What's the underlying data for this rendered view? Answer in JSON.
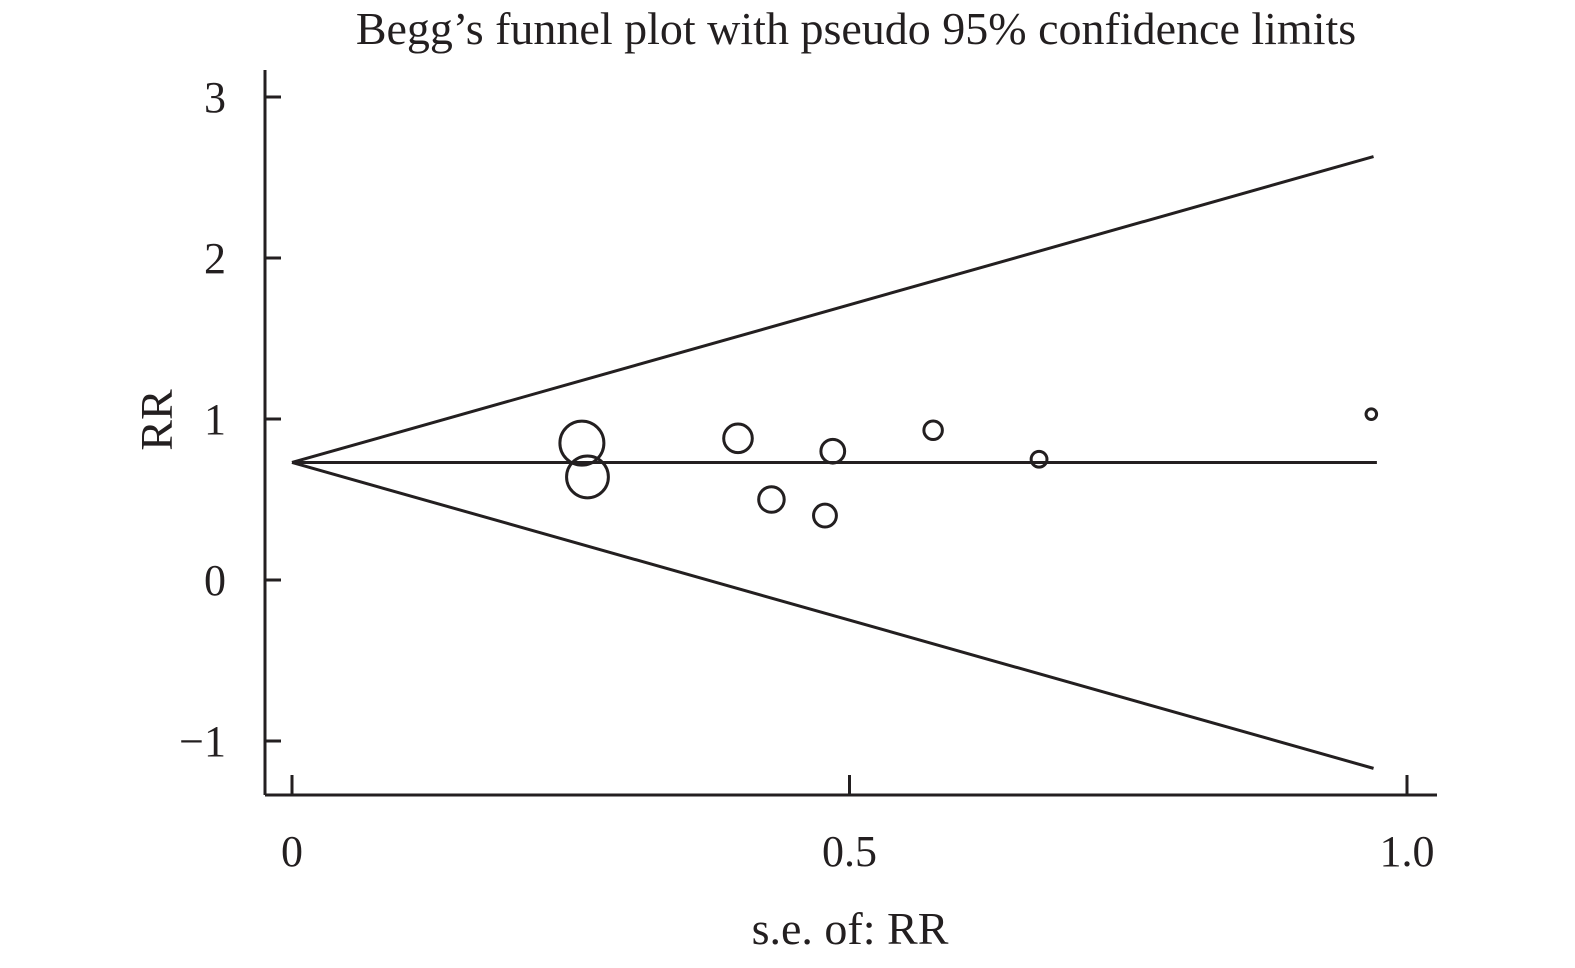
{
  "chart_data": {
    "type": "scatter",
    "title": "Begg’s funnel plot with pseudo 95% confidence limits",
    "xlabel": "s.e. of: RR",
    "ylabel": "RR",
    "xlim": [
      -0.025,
      1.025
    ],
    "ylim": [
      -1.33,
      3.17
    ],
    "x_ticks": [
      {
        "value": 0,
        "label": "0"
      },
      {
        "value": 0.5,
        "label": "0.5"
      },
      {
        "value": 1.0,
        "label": "1.0"
      }
    ],
    "y_ticks": [
      {
        "value": -1,
        "label": "−1"
      },
      {
        "value": 0,
        "label": "0"
      },
      {
        "value": 1,
        "label": "1"
      },
      {
        "value": 2,
        "label": "2"
      },
      {
        "value": 3,
        "label": "3"
      }
    ],
    "pooled_estimate": 0.73,
    "funnel_max_se": 0.97,
    "funnel_upper_end": 2.63,
    "funnel_lower_end": -1.17,
    "grid": false,
    "legend": "none",
    "points": [
      {
        "x": 0.26,
        "y": 0.85,
        "weight": 1.0
      },
      {
        "x": 0.265,
        "y": 0.64,
        "weight": 0.95
      },
      {
        "x": 0.4,
        "y": 0.88,
        "weight": 0.65
      },
      {
        "x": 0.43,
        "y": 0.5,
        "weight": 0.58
      },
      {
        "x": 0.485,
        "y": 0.8,
        "weight": 0.54
      },
      {
        "x": 0.478,
        "y": 0.4,
        "weight": 0.52
      },
      {
        "x": 0.575,
        "y": 0.93,
        "weight": 0.42
      },
      {
        "x": 0.67,
        "y": 0.75,
        "weight": 0.36
      },
      {
        "x": 0.968,
        "y": 1.03,
        "weight": 0.24
      }
    ]
  }
}
